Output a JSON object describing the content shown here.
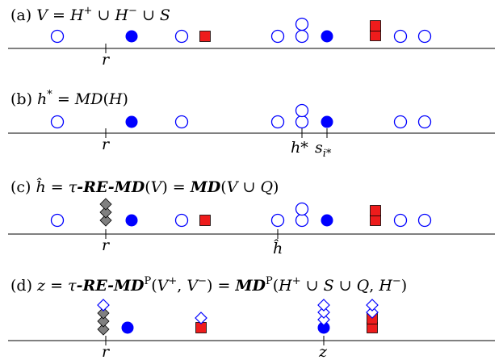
{
  "colors": {
    "blue": "#0000ff",
    "red": "#ee1c1c",
    "gray": "#808080",
    "black": "#000000"
  },
  "panels": [
    {
      "id": "a",
      "caption_prefix": "(a) ",
      "caption": [
        {
          "t": "V",
          "s": "it"
        },
        {
          "t": " = "
        },
        {
          "t": "H",
          "s": "it"
        },
        {
          "t": "+",
          "s": "sup"
        },
        {
          "t": " ∪ "
        },
        {
          "t": "H",
          "s": "it"
        },
        {
          "t": "−",
          "s": "sup"
        },
        {
          "t": " ∪ "
        },
        {
          "t": "S",
          "s": "it"
        }
      ],
      "markers": [
        {
          "name": "r",
          "label": "r"
        }
      ]
    },
    {
      "id": "b",
      "caption_prefix": "(b) ",
      "caption": [
        {
          "t": "h",
          "s": "it"
        },
        {
          "t": "*",
          "s": "sup"
        },
        {
          "t": " = "
        },
        {
          "t": "MD",
          "s": "it"
        },
        {
          "t": "("
        },
        {
          "t": "H",
          "s": "it"
        },
        {
          "t": ")"
        }
      ],
      "markers": [
        {
          "name": "r",
          "label": "r"
        },
        {
          "name": "h-star",
          "label": "h*"
        },
        {
          "name": "s-i-star",
          "label": "s",
          "sub": "i*"
        }
      ]
    },
    {
      "id": "c",
      "caption_prefix": "(c) ",
      "caption": [
        {
          "t": "ĥ",
          "s": "it"
        },
        {
          "t": " = "
        },
        {
          "t": "τ",
          "s": "it"
        },
        {
          "t": "-RE-MD",
          "s": "bi"
        },
        {
          "t": "("
        },
        {
          "t": "V",
          "s": "it"
        },
        {
          "t": ") = "
        },
        {
          "t": "MD",
          "s": "bi"
        },
        {
          "t": "("
        },
        {
          "t": "V",
          "s": "it"
        },
        {
          "t": " ∪ "
        },
        {
          "t": "Q",
          "s": "it"
        },
        {
          "t": ")"
        }
      ],
      "markers": [
        {
          "name": "r",
          "label": "r"
        },
        {
          "name": "h-hat",
          "label": "ĥ"
        }
      ]
    },
    {
      "id": "d",
      "caption_prefix": "(d) ",
      "caption": [
        {
          "t": "z",
          "s": "it"
        },
        {
          "t": " = "
        },
        {
          "t": "τ",
          "s": "it"
        },
        {
          "t": "-RE-MD",
          "s": "bi"
        },
        {
          "t": "P",
          "s": "sup"
        },
        {
          "t": "("
        },
        {
          "t": "V",
          "s": "it"
        },
        {
          "t": "+",
          "s": "sup"
        },
        {
          "t": ", "
        },
        {
          "t": "V",
          "s": "it"
        },
        {
          "t": "−",
          "s": "sup"
        },
        {
          "t": ") = "
        },
        {
          "t": "MD",
          "s": "bi"
        },
        {
          "t": "P",
          "s": "sup"
        },
        {
          "t": "("
        },
        {
          "t": "H",
          "s": "it"
        },
        {
          "t": "+",
          "s": "sup"
        },
        {
          "t": " ∪ "
        },
        {
          "t": "S",
          "s": "it"
        },
        {
          "t": " ∪ "
        },
        {
          "t": "Q",
          "s": "it"
        },
        {
          "t": ", "
        },
        {
          "t": "H",
          "s": "it"
        },
        {
          "t": "−",
          "s": "sup"
        },
        {
          "t": ")"
        }
      ],
      "markers": [
        {
          "name": "r",
          "label": "r"
        },
        {
          "name": "z",
          "label": "z"
        }
      ]
    }
  ]
}
